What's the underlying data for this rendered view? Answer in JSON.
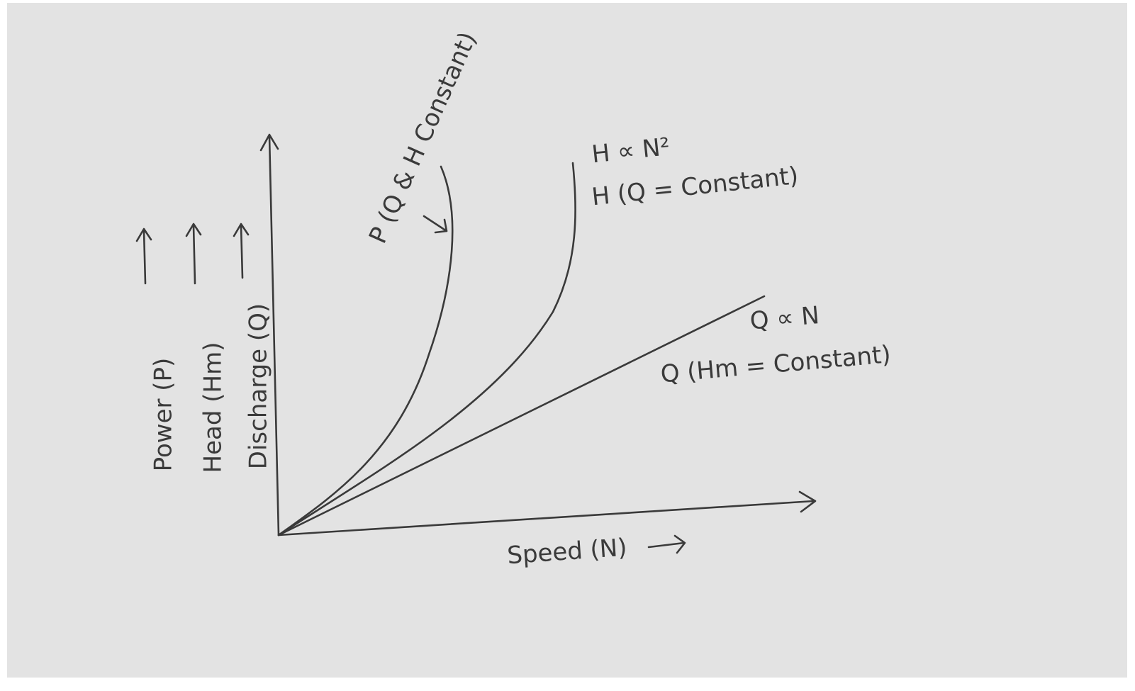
{
  "y_axis_labels": [
    "Power (P)",
    "Head (Hm)",
    "Discharge (Q)"
  ],
  "x_axis_label": "Speed (N)",
  "curves": [
    {
      "label": "P (Q & H Constant)"
    },
    {
      "label": "H ∝ N²",
      "sublabel": "H (Q = Constant)"
    },
    {
      "label": "Q ∝ N",
      "sublabel": "Q (Hm = Constant)"
    }
  ]
}
